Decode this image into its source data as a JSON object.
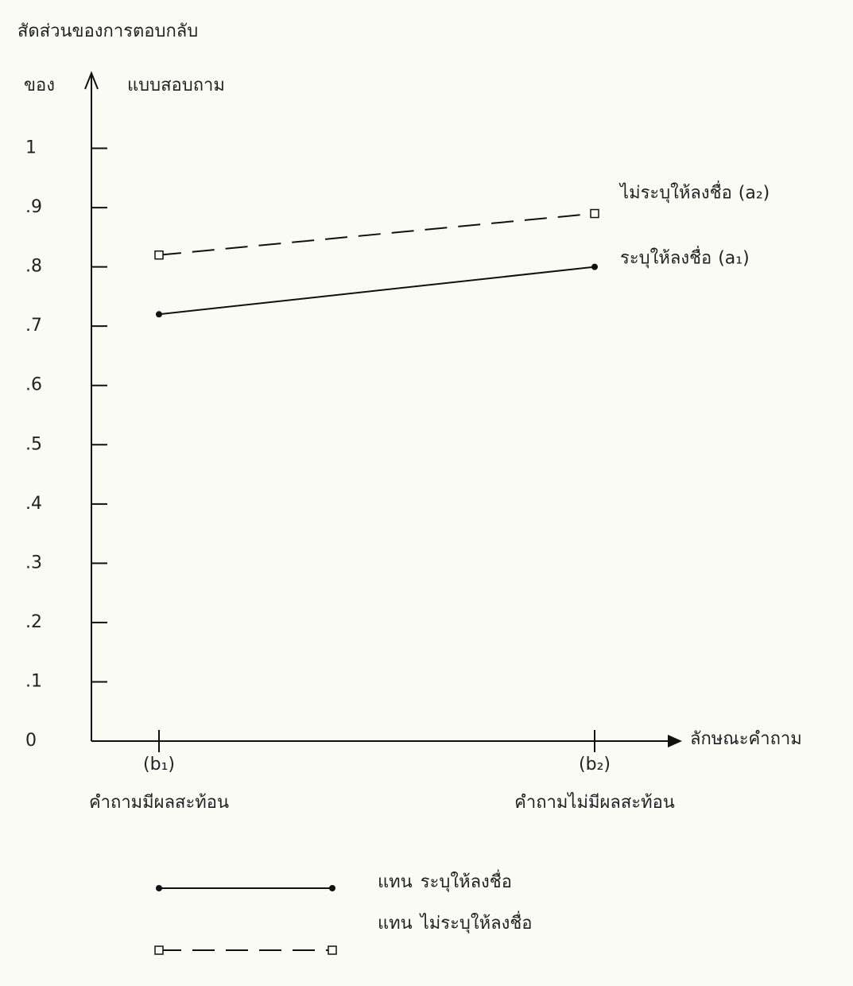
{
  "chart_data": {
    "type": "line",
    "y_label": [
      "สัดส่วนของการตอบกลับ",
      "ของ",
      "แบบสอบถาม"
    ],
    "x_label": "ลักษณะคำถาม",
    "categories": [
      "(b₁)",
      "(b₂)"
    ],
    "category_descriptions": [
      "คำถามมีผลสะท้อน",
      "คำถามไม่มีผลสะท้อน"
    ],
    "ylim": [
      0,
      1.1
    ],
    "yticks": [
      0,
      {
        "value": 0.1,
        "label": ".1"
      },
      {
        "value": 0.2,
        "label": ".2"
      },
      {
        "value": 0.3,
        "label": ".3"
      },
      {
        "value": 0.4,
        "label": ".4"
      },
      {
        "value": 0.5,
        "label": ".5"
      },
      {
        "value": 0.6,
        "label": ".6"
      },
      {
        "value": 0.7,
        "label": ".7"
      },
      {
        "value": 0.8,
        "label": ".8"
      },
      {
        "value": 0.9,
        "label": ".9"
      },
      1
    ],
    "legend_prefix": "แทน",
    "series": [
      {
        "name": "ระบุให้ลงชื่อ",
        "code": "(a₁)",
        "color": "#111111",
        "dashed": false,
        "marker": "circle",
        "values": [
          0.72,
          0.8
        ]
      },
      {
        "name": "ไม่ระบุให้ลงชื่อ",
        "code": "(a₂)",
        "color": "#111111",
        "dashed": true,
        "marker": "square",
        "values": [
          0.82,
          0.89
        ]
      }
    ]
  }
}
